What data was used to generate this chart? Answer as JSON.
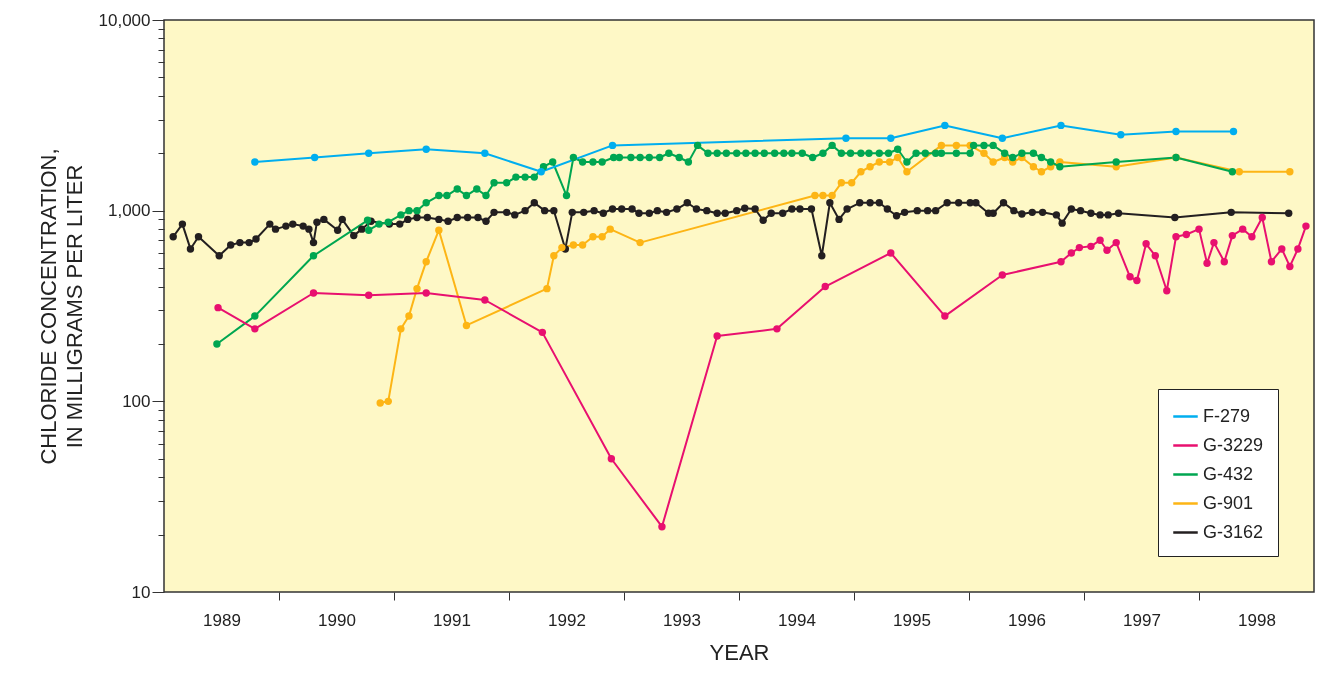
{
  "chart_data": {
    "type": "line",
    "xlabel": "YEAR",
    "ylabel": "CHLORIDE CONCENTRATION, IN MILLIGRAMS PER LITER",
    "log": true,
    "legend": "bottom right",
    "marker": "circle",
    "line_style": "solid",
    "grid": false,
    "xlim": [
      1989,
      1999
    ],
    "xticks": [
      {
        "value": 1989.5,
        "label": "1989"
      },
      {
        "value": 1990,
        "label": null
      },
      {
        "value": 1990.5,
        "label": "1990"
      },
      {
        "value": 1991,
        "label": null
      },
      {
        "value": 1991.5,
        "label": "1991"
      },
      {
        "value": 1992,
        "label": null
      },
      {
        "value": 1992.5,
        "label": "1992"
      },
      {
        "value": 1993,
        "label": null
      },
      {
        "value": 1993.5,
        "label": "1993"
      },
      {
        "value": 1994,
        "label": null
      },
      {
        "value": 1994.5,
        "label": "1994"
      },
      {
        "value": 1995,
        "label": null
      },
      {
        "value": 1995.5,
        "label": "1995"
      },
      {
        "value": 1996,
        "label": null
      },
      {
        "value": 1996.5,
        "label": "1996"
      },
      {
        "value": 1997,
        "label": null
      },
      {
        "value": 1997.5,
        "label": "1997"
      },
      {
        "value": 1998,
        "label": null
      },
      {
        "value": 1998.5,
        "label": "1998"
      }
    ],
    "ylim": [
      10,
      10000
    ],
    "yticks": [
      10,
      {
        "value": 20,
        "label": null
      },
      {
        "value": 30,
        "label": null
      },
      {
        "value": 40,
        "label": null
      },
      {
        "value": 50,
        "label": null
      },
      {
        "value": 60,
        "label": null
      },
      {
        "value": 70,
        "label": null
      },
      {
        "value": 80,
        "label": null
      },
      {
        "value": 90,
        "label": null
      },
      100,
      {
        "value": 200,
        "label": null
      },
      {
        "value": 300,
        "label": null
      },
      {
        "value": 400,
        "label": null
      },
      {
        "value": 500,
        "label": null
      },
      {
        "value": 600,
        "label": null
      },
      {
        "value": 700,
        "label": null
      },
      {
        "value": 800,
        "label": null
      },
      {
        "value": 900,
        "label": null
      },
      {
        "value": 1000,
        "label": "1,000"
      },
      {
        "value": 2000,
        "label": null
      },
      {
        "value": 3000,
        "label": null
      },
      {
        "value": 4000,
        "label": null
      },
      {
        "value": 5000,
        "label": null
      },
      {
        "value": 6000,
        "label": null
      },
      {
        "value": 7000,
        "label": null
      },
      {
        "value": 8000,
        "label": null
      },
      {
        "value": 9000,
        "label": null
      },
      {
        "value": 10000,
        "label": "10,000"
      }
    ],
    "series": [
      {
        "name": "F-279",
        "color": "#00aeef",
        "x": [
          1989.79,
          1990.31,
          1990.78,
          1991.28,
          1991.79,
          1992.28,
          1992.9,
          1994.93,
          1995.32,
          1995.79,
          1996.29,
          1996.8,
          1997.32,
          1997.8,
          1998.3
        ],
        "values": [
          1800,
          1900,
          2000,
          2100,
          2000,
          1600,
          2200,
          2400,
          2400,
          2800,
          2400,
          2800,
          2500,
          2600,
          2600
        ]
      },
      {
        "name": "G-3229",
        "color": "#e8106f",
        "x": [
          1989.47,
          1989.79,
          1990.3,
          1990.78,
          1991.28,
          1991.79,
          1992.29,
          1992.89,
          1993.33,
          1993.81,
          1994.33,
          1994.75,
          1995.32,
          1995.79,
          1996.29,
          1996.8,
          1996.89,
          1996.96,
          1997.06,
          1997.14,
          1997.2,
          1997.28,
          1997.4,
          1997.46,
          1997.54,
          1997.62,
          1997.72,
          1997.8,
          1997.89,
          1998.0,
          1998.07,
          1998.13,
          1998.22,
          1998.29,
          1998.38,
          1998.46,
          1998.55,
          1998.63,
          1998.72,
          1998.79,
          1998.86,
          1998.93
        ],
        "values": [
          310,
          240,
          370,
          360,
          370,
          340,
          230,
          50,
          22,
          220,
          240,
          400,
          600,
          280,
          460,
          540,
          600,
          640,
          650,
          700,
          620,
          680,
          450,
          430,
          670,
          580,
          380,
          730,
          750,
          800,
          530,
          680,
          540,
          740,
          800,
          730,
          920,
          540,
          630,
          510,
          630,
          830
        ]
      },
      {
        "name": "G-432",
        "color": "#00a651",
        "x": [
          1989.46,
          1989.79,
          1990.3,
          1990.77,
          1990.78,
          1990.87,
          1990.95,
          1991.06,
          1991.13,
          1991.2,
          1991.28,
          1991.39,
          1991.46,
          1991.55,
          1991.63,
          1991.72,
          1991.8,
          1991.87,
          1991.98,
          1992.06,
          1992.14,
          1992.22,
          1992.3,
          1992.38,
          1992.5,
          1992.56,
          1992.64,
          1992.73,
          1992.81,
          1992.91,
          1992.96,
          1993.06,
          1993.14,
          1993.22,
          1993.31,
          1993.39,
          1993.48,
          1993.56,
          1993.64,
          1993.73,
          1993.81,
          1993.89,
          1993.98,
          1994.06,
          1994.14,
          1994.22,
          1994.31,
          1994.39,
          1994.46,
          1994.55,
          1994.64,
          1994.73,
          1994.81,
          1994.89,
          1994.97,
          1995.06,
          1995.13,
          1995.22,
          1995.3,
          1995.38,
          1995.46,
          1995.54,
          1995.62,
          1995.71,
          1995.76,
          1995.89,
          1996.01,
          1996.04,
          1996.13,
          1996.21,
          1996.31,
          1996.38,
          1996.46,
          1996.56,
          1996.63,
          1996.71,
          1996.79,
          1997.28,
          1997.8,
          1998.29
        ],
        "values": [
          200,
          280,
          580,
          890,
          790,
          850,
          870,
          950,
          1000,
          1000,
          1100,
          1200,
          1200,
          1300,
          1200,
          1300,
          1200,
          1400,
          1400,
          1500,
          1500,
          1500,
          1700,
          1800,
          1200,
          1900,
          1800,
          1800,
          1800,
          1900,
          1900,
          1900,
          1900,
          1900,
          1900,
          2000,
          1900,
          1800,
          2200,
          2000,
          2000,
          2000,
          2000,
          2000,
          2000,
          2000,
          2000,
          2000,
          2000,
          2000,
          1900,
          2000,
          2200,
          2000,
          2000,
          2000,
          2000,
          2000,
          2000,
          2100,
          1800,
          2000,
          2000,
          2000,
          2000,
          2000,
          2000,
          2200,
          2200,
          2200,
          2000,
          1900,
          2000,
          2000,
          1900,
          1800,
          1700,
          1800,
          1900,
          1600
        ]
      },
      {
        "name": "G-901",
        "color": "#fdb515",
        "x": [
          1990.88,
          1990.95,
          1991.06,
          1991.13,
          1991.2,
          1991.28,
          1991.39,
          1991.63,
          1992.33,
          1992.39,
          1992.46,
          1992.56,
          1992.64,
          1992.73,
          1992.81,
          1992.88,
          1993.14,
          1994.66,
          1994.73,
          1994.81,
          1994.89,
          1994.98,
          1995.06,
          1995.14,
          1995.22,
          1995.31,
          1995.38,
          1995.46,
          1995.76,
          1995.89,
          1996.01,
          1996.13,
          1996.21,
          1996.31,
          1996.38,
          1996.46,
          1996.56,
          1996.63,
          1996.71,
          1996.79,
          1997.28,
          1997.8,
          1998.35,
          1998.79
        ],
        "values": [
          98,
          100,
          240,
          280,
          390,
          540,
          790,
          250,
          390,
          580,
          640,
          660,
          660,
          730,
          730,
          800,
          680,
          1200,
          1200,
          1200,
          1400,
          1400,
          1600,
          1700,
          1800,
          1800,
          1900,
          1600,
          2200,
          2200,
          2200,
          2000,
          1800,
          1900,
          1800,
          1900,
          1700,
          1600,
          1700,
          1800,
          1700,
          1900,
          1600,
          1600
        ]
      },
      {
        "name": "G-3162",
        "color": "#231f20",
        "x": [
          1989.08,
          1989.16,
          1989.23,
          1989.3,
          1989.48,
          1989.58,
          1989.66,
          1989.74,
          1989.8,
          1989.92,
          1989.97,
          1990.06,
          1990.12,
          1990.21,
          1990.26,
          1990.3,
          1990.33,
          1990.39,
          1990.51,
          1990.55,
          1990.65,
          1990.72,
          1990.8,
          1990.96,
          1991.05,
          1991.12,
          1991.2,
          1991.29,
          1991.39,
          1991.47,
          1991.55,
          1991.64,
          1991.73,
          1991.8,
          1991.87,
          1991.98,
          1992.05,
          1992.14,
          1992.22,
          1992.31,
          1992.39,
          1992.49,
          1992.55,
          1992.65,
          1992.74,
          1992.82,
          1992.9,
          1992.98,
          1993.07,
          1993.13,
          1993.22,
          1993.29,
          1993.37,
          1993.46,
          1993.55,
          1993.63,
          1993.72,
          1993.81,
          1993.88,
          1993.98,
          1994.05,
          1994.14,
          1994.21,
          1994.28,
          1994.38,
          1994.46,
          1994.53,
          1994.63,
          1994.72,
          1994.79,
          1994.87,
          1994.94,
          1995.05,
          1995.14,
          1995.22,
          1995.29,
          1995.37,
          1995.44,
          1995.55,
          1995.64,
          1995.71,
          1995.81,
          1995.91,
          1996.01,
          1996.06,
          1996.17,
          1996.21,
          1996.3,
          1996.39,
          1996.46,
          1996.55,
          1996.64,
          1996.76,
          1996.81,
          1996.89,
          1996.97,
          1997.06,
          1997.14,
          1997.21,
          1997.3,
          1997.79,
          1998.28,
          1998.78
        ],
        "values": [
          730,
          850,
          630,
          730,
          580,
          660,
          680,
          680,
          710,
          850,
          800,
          830,
          850,
          830,
          800,
          680,
          870,
          900,
          790,
          900,
          740,
          800,
          880,
          850,
          850,
          900,
          920,
          920,
          900,
          880,
          920,
          920,
          920,
          880,
          980,
          980,
          950,
          1000,
          1100,
          1000,
          1000,
          630,
          980,
          980,
          1000,
          970,
          1020,
          1020,
          1020,
          970,
          970,
          1000,
          980,
          1020,
          1100,
          1020,
          1000,
          970,
          970,
          1000,
          1030,
          1020,
          890,
          970,
          970,
          1020,
          1020,
          1020,
          580,
          1100,
          900,
          1020,
          1100,
          1100,
          1100,
          1020,
          940,
          980,
          1000,
          1000,
          1000,
          1100,
          1100,
          1100,
          1100,
          970,
          970,
          1100,
          1000,
          960,
          980,
          980,
          950,
          860,
          1020,
          1000,
          970,
          950,
          950,
          970,
          920,
          980,
          970
        ]
      }
    ]
  }
}
